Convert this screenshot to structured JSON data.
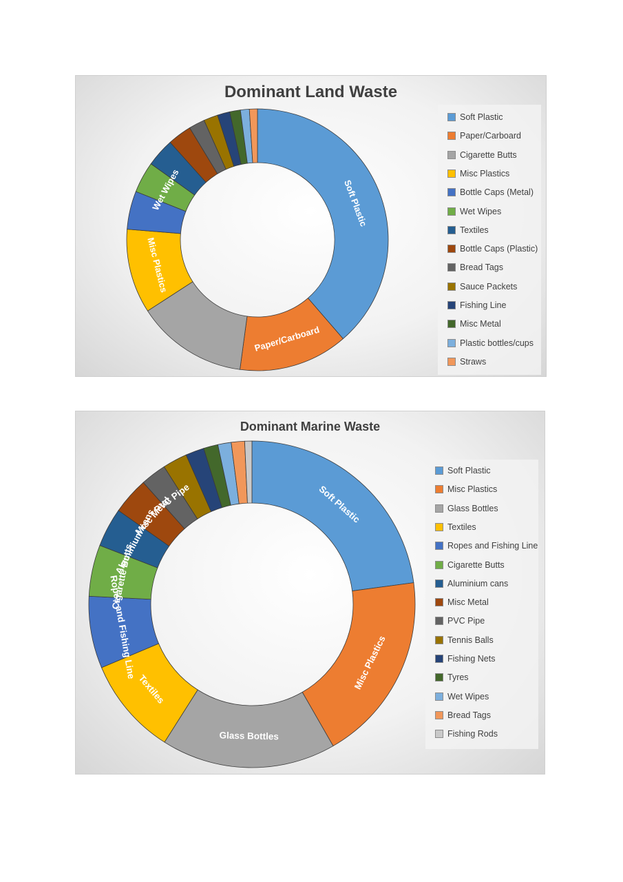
{
  "chart_data": [
    {
      "type": "donut",
      "title": "Dominant Land Waste",
      "categories": [
        "Soft Plastic",
        "Paper/Carboard",
        "Cigarette Butts",
        "Misc Plastics",
        "Bottle Caps (Metal)",
        "Wet Wipes",
        "Textiles",
        "Bottle Caps (Plastic)",
        "Bread Tags",
        "Sauce Packets",
        "Fishing Line",
        "Misc Metal",
        "Plastic bottles/cups",
        "Straws"
      ],
      "values": [
        35.2,
        12.3,
        12.5,
        9.5,
        4.3,
        3.5,
        3.2,
        2.7,
        1.8,
        1.6,
        1.4,
        1.2,
        1.0,
        0.9
      ],
      "slice_labels": [
        "Soft Plastic",
        "Paper/Carboard",
        "",
        "Misc Plastics",
        "",
        "Wet Wipes",
        "",
        "",
        "",
        "",
        "",
        "",
        "",
        ""
      ],
      "colors": [
        "#5b9bd5",
        "#ed7d31",
        "#a5a5a5",
        "#ffc000",
        "#4472c4",
        "#70ad47",
        "#255e91",
        "#9e480e",
        "#636363",
        "#997300",
        "#264478",
        "#43682b",
        "#7cafdd",
        "#f1975a"
      ],
      "legend_position": "right"
    },
    {
      "type": "donut",
      "title": "Dominant Marine Waste",
      "categories": [
        "Soft Plastic",
        "Misc Plastics",
        "Glass Bottles",
        "Textiles",
        "Ropes and Fishing Line",
        "Cigarette Butts",
        "Aluminium cans",
        "Misc Metal",
        "PVC Pipe",
        "Tennis Balls",
        "Fishing Nets",
        "Tyres",
        "Wet Wipes",
        "Bread Tags",
        "Fishing Rods"
      ],
      "values": [
        22.5,
        18.5,
        17.0,
        9.5,
        7.0,
        5.0,
        3.8,
        3.6,
        2.5,
        2.4,
        1.8,
        1.4,
        1.3,
        1.3,
        0.7
      ],
      "slice_labels": [
        "Soft Plastic",
        "Misc Plastics",
        "Glass Bottles",
        "Textiles",
        "Ropes and Fishing Line",
        "Cigarette Butts",
        "Aluminium cans",
        "Misc Metal",
        "PVC Pipe",
        "",
        "",
        "",
        "",
        "",
        ""
      ],
      "colors": [
        "#5b9bd5",
        "#ed7d31",
        "#a5a5a5",
        "#ffc000",
        "#4472c4",
        "#70ad47",
        "#255e91",
        "#9e480e",
        "#636363",
        "#997300",
        "#264478",
        "#43682b",
        "#7cafdd",
        "#f1975a",
        "#c9c9c9"
      ],
      "legend_position": "right"
    }
  ]
}
